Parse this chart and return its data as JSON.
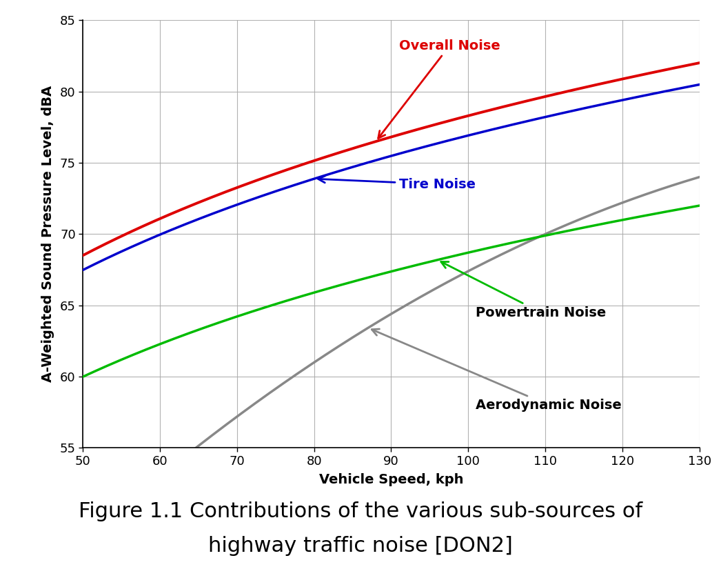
{
  "x_min": 50,
  "x_max": 130,
  "y_min": 55,
  "y_max": 85,
  "x_ticks": [
    50,
    60,
    70,
    80,
    90,
    100,
    110,
    120,
    130
  ],
  "y_ticks": [
    55,
    60,
    65,
    70,
    75,
    80,
    85
  ],
  "xlabel": "Vehicle Speed, kph",
  "ylabel": "A-Weighted Sound Pressure Level, dBA",
  "figure_caption_line1": "Figure 1.1 Contributions of the various sub-sources of",
  "figure_caption_line2": "highway traffic noise [DON2]",
  "overall_color": "#dd0000",
  "tire_color": "#0000cc",
  "powertrain_color": "#00bb00",
  "aero_color": "#888888",
  "background_color": "#ffffff",
  "grid_color": "#aaaaaa",
  "linewidth": 2.5,
  "annotation_fontsize": 14,
  "axis_label_fontsize": 14,
  "tick_fontsize": 13,
  "caption_fontsize": 22
}
